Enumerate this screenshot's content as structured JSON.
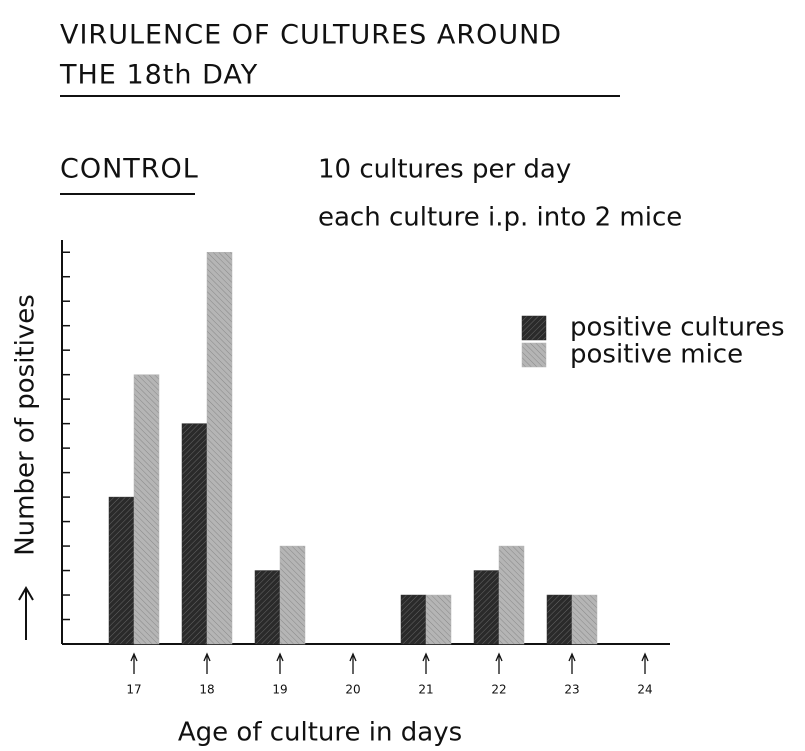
{
  "chart_data": {
    "type": "bar",
    "title": [
      "VIRULENCE OF CULTURES AROUND",
      "THE 18th DAY"
    ],
    "subtitle": "CONTROL",
    "annotations": [
      "10 cultures per day",
      "each culture i.p. into 2 mice"
    ],
    "ylabel": "Number of positives",
    "xlabel": "Age of culture in days",
    "categories": [
      "17",
      "18",
      "19",
      "20",
      "21",
      "22",
      "23",
      "24"
    ],
    "series": [
      {
        "name": "positive cultures",
        "color": "#2a2a2a",
        "values": [
          6,
          9,
          3,
          0,
          2,
          3,
          2,
          0
        ]
      },
      {
        "name": "positive mice",
        "color": "#b5b5b5",
        "values": [
          11,
          16,
          4,
          0,
          2,
          4,
          2,
          0
        ]
      }
    ],
    "ylim": [
      0,
      16.5
    ],
    "yticks": [
      0,
      1,
      2,
      3,
      4,
      5,
      6,
      7,
      8,
      9,
      10,
      11,
      12,
      13,
      14,
      15,
      16
    ],
    "legend": "right"
  }
}
